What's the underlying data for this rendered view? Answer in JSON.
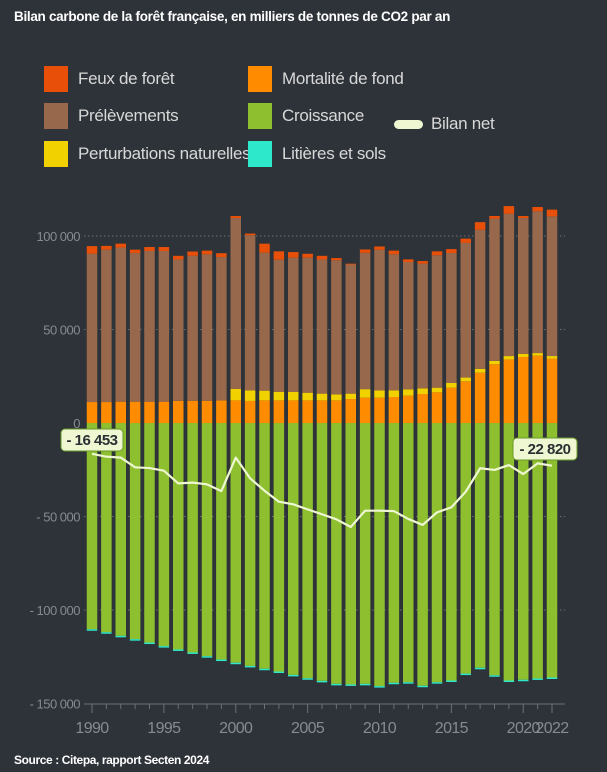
{
  "title": "Bilan carbone de la forêt française, en milliers de tonnes de CO2 par an",
  "source": "Source : Citepa, rapport Secten 2024",
  "colors": {
    "background": "#2d3338",
    "feux": "#e8500a",
    "mortalite": "#ff8c00",
    "prelevements": "#97684b",
    "croissance": "#8dbf2f",
    "perturbations": "#f2d100",
    "litieres": "#2ee8cc",
    "bilan": "#eef7d2"
  },
  "legend": {
    "feux": "Feux de forêt",
    "mortalite": "Mortalité de fond",
    "prelevements": "Prélèvements",
    "croissance": "Croissance",
    "perturbations": "Perturbations naturelles",
    "litieres": "Litières et sols",
    "bilan": "Bilan net"
  },
  "chart_data": {
    "type": "bar",
    "stacked": true,
    "unit": "milliers de tonnes de CO2",
    "x": [
      1990,
      1991,
      1992,
      1993,
      1994,
      1995,
      1996,
      1997,
      1998,
      1999,
      2000,
      2001,
      2002,
      2003,
      2004,
      2005,
      2006,
      2007,
      2008,
      2009,
      2010,
      2011,
      2012,
      2013,
      2014,
      2015,
      2016,
      2017,
      2018,
      2019,
      2020,
      2021,
      2022
    ],
    "x_tick_labels": [
      "1990",
      "1995",
      "2000",
      "2005",
      "2010",
      "2015",
      "2020",
      "2022"
    ],
    "y_tick_labels": [
      "100 000",
      "50 000",
      "0",
      "- 50 000",
      "- 100 000",
      "- 150 000"
    ],
    "y_ticks": [
      100000,
      50000,
      0,
      -50000,
      -100000,
      -150000
    ],
    "ylim": [
      -150000,
      115000
    ],
    "grid": true,
    "legend_position": "top",
    "series": [
      {
        "key": "mortalite",
        "name": "Mortalité de fond",
        "values": [
          11200,
          11200,
          11400,
          11400,
          11400,
          11400,
          11800,
          11900,
          11900,
          12100,
          12100,
          11800,
          12100,
          12100,
          12100,
          12100,
          12100,
          12100,
          12800,
          13500,
          13500,
          13900,
          14600,
          15500,
          16400,
          18900,
          22300,
          26900,
          31400,
          34000,
          35300,
          36000,
          34400
        ]
      },
      {
        "key": "perturbations",
        "name": "Perturbations naturelles",
        "values": [
          0,
          0,
          0,
          0,
          0,
          0,
          0,
          0,
          0,
          0,
          6100,
          5700,
          5200,
          4600,
          4500,
          4100,
          3600,
          3200,
          2900,
          4600,
          3900,
          3600,
          3400,
          3000,
          2500,
          2500,
          2000,
          2100,
          1800,
          1800,
          1600,
          1400,
          1400
        ]
      },
      {
        "key": "prelevements",
        "name": "Prélèvements",
        "values": [
          79300,
          81500,
          82400,
          79500,
          80600,
          80600,
          75600,
          77500,
          78300,
          76600,
          91400,
          82900,
          73800,
          70600,
          71800,
          72200,
          71700,
          71700,
          69200,
          72900,
          75200,
          72700,
          68100,
          66700,
          70800,
          69500,
          72000,
          74300,
          76100,
          76100,
          72700,
          75800,
          74700
        ]
      },
      {
        "key": "feux",
        "name": "Feux de forêt",
        "values": [
          4100,
          2000,
          2100,
          1800,
          2100,
          2100,
          2000,
          2300,
          2000,
          2100,
          1100,
          900,
          4800,
          4500,
          3000,
          2100,
          2000,
          1200,
          300,
          1800,
          1800,
          2000,
          1400,
          1400,
          2100,
          2100,
          2300,
          4100,
          1400,
          4100,
          1100,
          2300,
          3600
        ]
      },
      {
        "key": "croissance",
        "name": "Croissance",
        "values": [
          -110300,
          -111900,
          -113800,
          -115600,
          -117400,
          -119300,
          -121100,
          -122700,
          -124700,
          -126500,
          -128200,
          -129900,
          -131400,
          -132900,
          -134700,
          -136500,
          -137900,
          -139500,
          -139800,
          -139500,
          -140700,
          -138900,
          -138600,
          -140500,
          -138600,
          -137700,
          -134000,
          -130900,
          -134900,
          -137700,
          -137300,
          -136600,
          -136100
        ]
      },
      {
        "key": "litieres",
        "name": "Litières et sols",
        "values": [
          -800,
          -800,
          -800,
          -800,
          -800,
          -800,
          -800,
          -800,
          -800,
          -800,
          -800,
          -800,
          -800,
          -800,
          -800,
          -800,
          -800,
          -800,
          -800,
          -800,
          -800,
          -800,
          -800,
          -800,
          -800,
          -800,
          -800,
          -800,
          -800,
          -800,
          -800,
          -800,
          -800
        ]
      }
    ],
    "net": {
      "name": "Bilan net",
      "values": [
        -16453,
        -18000,
        -18500,
        -23700,
        -24100,
        -25500,
        -32300,
        -31900,
        -32800,
        -36400,
        -18500,
        -29600,
        -36200,
        -42100,
        -43500,
        -46200,
        -48800,
        -51500,
        -55600,
        -46900,
        -46900,
        -47100,
        -51300,
        -54500,
        -47800,
        -45100,
        -36700,
        -24200,
        -25100,
        -22500,
        -27300,
        -21600,
        -22820
      ],
      "first_label": "- 16 453",
      "last_label": "- 22 820"
    }
  }
}
